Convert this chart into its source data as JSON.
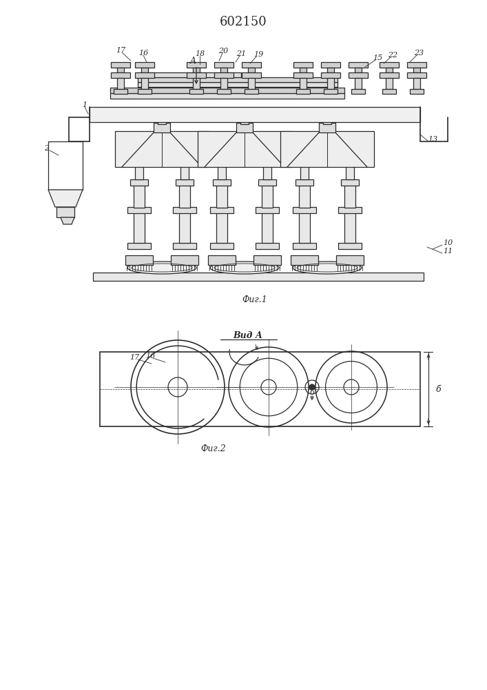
{
  "title": "602150",
  "fig1_caption": "Фиг.1",
  "fig2_caption": "Фиг.2",
  "view_label": "Вид А",
  "bg_color": "#ffffff",
  "lc": "#2a2a2a",
  "lw": 0.9
}
